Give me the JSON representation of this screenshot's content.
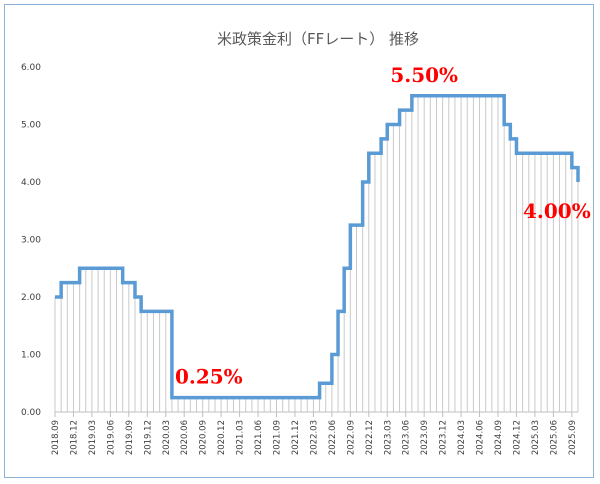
{
  "chart_data": {
    "type": "line",
    "title": "米政策金利（FFレート） 推移",
    "xlabel": "",
    "ylabel": "",
    "ylim": [
      0,
      6
    ],
    "y_ticks": [
      "0.00",
      "1.00",
      "2.00",
      "3.00",
      "4.00",
      "5.00",
      "6.00"
    ],
    "x_ticks": [
      "2018.09",
      "2018.12",
      "2019.03",
      "2019.06",
      "2019.09",
      "2019.12",
      "2020.03",
      "2020.06",
      "2020.09",
      "2020.12",
      "2021.03",
      "2021.06",
      "2021.09",
      "2021.12",
      "2022.03",
      "2022.06",
      "2022.09",
      "2022.12",
      "2023.03",
      "2023.06",
      "2023.09",
      "2023.12",
      "2024.03",
      "2024.06",
      "2024.09",
      "2024.12",
      "2025.03",
      "2025.06",
      "2025.09"
    ],
    "grid": false,
    "legend": "none",
    "series_color": "#5b9bd5",
    "annotation_color": "#ff0000",
    "annotations": [
      {
        "label": "5.50%",
        "at": "2023.09",
        "value": 5.5
      },
      {
        "label": "0.25%",
        "at": "2020.10",
        "value": 0.25
      },
      {
        "label": "4.00%",
        "at": "2025.09",
        "value": 4.0
      }
    ],
    "series": [
      {
        "changes": [
          [
            "2018.09",
            2.0
          ],
          [
            "2018.10",
            2.25
          ],
          [
            "2019.01",
            2.5
          ],
          [
            "2019.08",
            2.25
          ],
          [
            "2019.10",
            2.0
          ],
          [
            "2019.11",
            1.75
          ],
          [
            "2020.04",
            0.25
          ],
          [
            "2022.04",
            0.5
          ],
          [
            "2022.06",
            1.0
          ],
          [
            "2022.07",
            1.75
          ],
          [
            "2022.08",
            2.5
          ],
          [
            "2022.09",
            3.25
          ],
          [
            "2022.11",
            4.0
          ],
          [
            "2022.12",
            4.5
          ],
          [
            "2023.02",
            4.75
          ],
          [
            "2023.03",
            5.0
          ],
          [
            "2023.05",
            5.25
          ],
          [
            "2023.07",
            5.5
          ],
          [
            "2024.10",
            5.0
          ],
          [
            "2024.11",
            4.75
          ],
          [
            "2024.12",
            4.5
          ],
          [
            "2025.09",
            4.25
          ],
          [
            "2025.10",
            4.0
          ]
        ],
        "end": "2025.10"
      }
    ]
  }
}
